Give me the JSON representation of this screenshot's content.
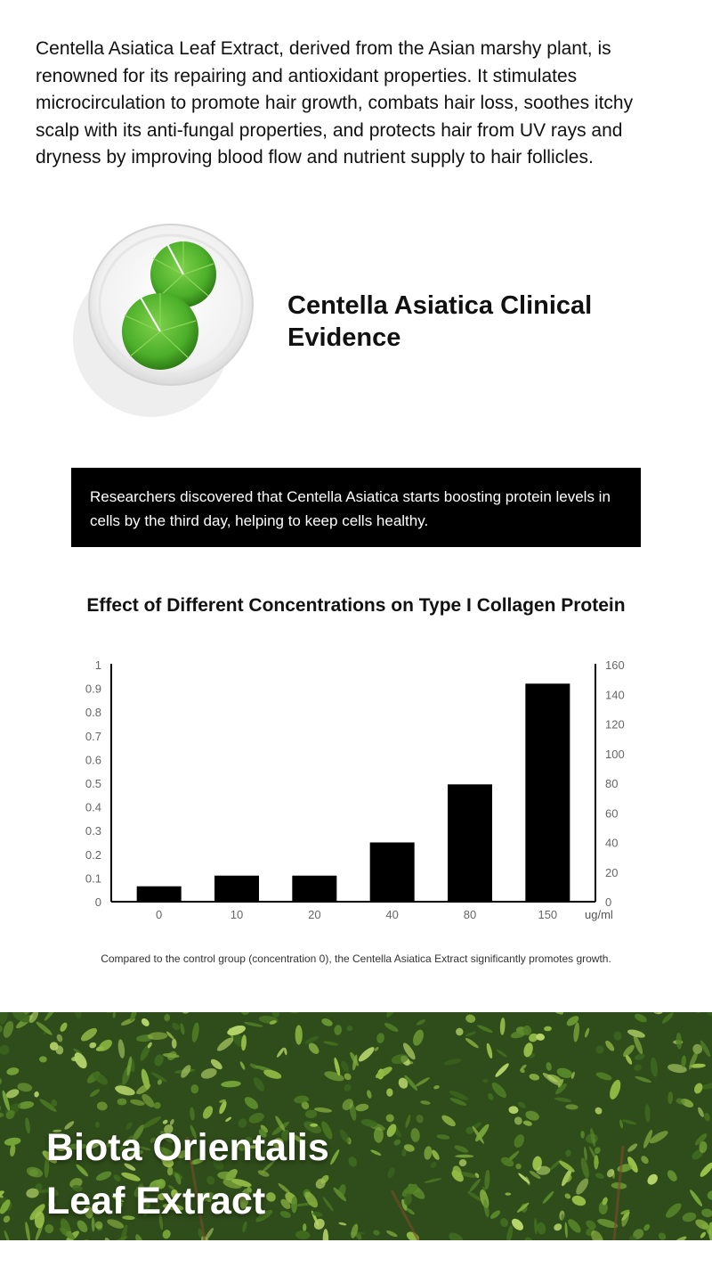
{
  "intro": {
    "text": "Centella Asiatica Leaf Extract, derived from the Asian marshy plant, is renowned for its repairing and antioxidant properties. It stimulates microcirculation to promote hair growth, combats hair loss, soothes itchy scalp with its anti-fungal properties, and protects hair from UV rays and dryness by improving blood flow and nutrient supply to hair follicles."
  },
  "evidence": {
    "title": "Centella Asiatica Clinical Evidence",
    "box_text": "Researchers discovered that Centella Asiatica starts boosting protein levels in cells by the third day, helping to keep cells healthy."
  },
  "chart_data": {
    "type": "bar",
    "title": "Effect of Different Concentrations on Type I Collagen Protein",
    "categories": [
      "0",
      "10",
      "20",
      "40",
      "80",
      "150"
    ],
    "values": [
      0.065,
      0.11,
      0.11,
      0.25,
      0.495,
      0.92
    ],
    "x_unit": "ug/ml",
    "ylim": [
      0,
      1
    ],
    "y_ticks": [
      "0",
      "0.1",
      "0.2",
      "0.3",
      "0.4",
      "0.5",
      "0.6",
      "0.7",
      "0.8",
      "0.9",
      "1"
    ],
    "y2lim": [
      0,
      160
    ],
    "y2_ticks": [
      "0",
      "20",
      "40",
      "60",
      "80",
      "100",
      "120",
      "140",
      "160"
    ],
    "bar_color": "#000000",
    "grid": false
  },
  "caption": {
    "text": "Compared to the control group (concentration 0), the Centella Asiatica Extract significantly promotes growth."
  },
  "banner": {
    "title_line1": "Biota Orientalis",
    "title_line2": "Leaf Extract"
  },
  "colors": {
    "leaf_green": "#4caf2a",
    "foliage_dark": "#2f4d1a",
    "foliage_light": "#9bc24a"
  }
}
